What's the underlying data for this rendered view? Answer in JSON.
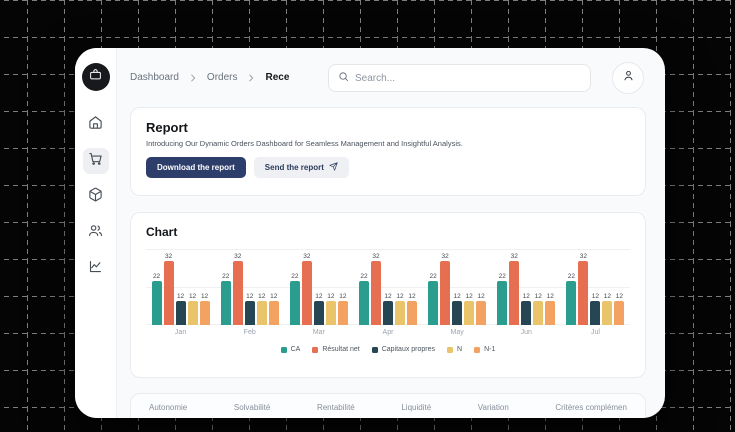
{
  "page": {
    "background": "#050505",
    "grid_line_color": "#7d7d7d"
  },
  "colors": {
    "primary_button_bg": "#2d3e6b",
    "primary_button_text": "#ffffff",
    "secondary_button_text": "#2c3a5c",
    "logo_bg": "#17191c"
  },
  "sidebar": {
    "logo_icon": "briefcase-icon",
    "items": [
      {
        "icon": "home-icon",
        "active": false
      },
      {
        "icon": "cart-icon",
        "active": true
      },
      {
        "icon": "package-icon",
        "active": false
      },
      {
        "icon": "users-icon",
        "active": false
      },
      {
        "icon": "chart-icon",
        "active": false
      }
    ]
  },
  "header": {
    "breadcrumb": [
      {
        "label": "Dashboard",
        "current": false
      },
      {
        "label": "Orders",
        "current": false
      },
      {
        "label": "Rece",
        "current": true
      }
    ],
    "separator_icon": "chevron-right-icon",
    "search_icon": "search-icon",
    "search_placeholder": "Search...",
    "avatar_icon": "user-icon"
  },
  "report": {
    "title": "Report",
    "description": "Introducing Our Dynamic Orders Dashboard for Seamless Management and Insightful Analysis.",
    "download_label": "Download the report",
    "send_label": "Send the report",
    "send_icon": "send-icon"
  },
  "chart_section": {
    "title": "Chart"
  },
  "chart_data": {
    "type": "bar",
    "title": "Chart",
    "categories": [
      "Jan",
      "Feb",
      "Mar",
      "Apr",
      "May",
      "Jun",
      "Jul"
    ],
    "series": [
      {
        "name": "CA",
        "color": "#2a9d8f",
        "values": [
          22,
          22,
          22,
          22,
          22,
          22,
          22
        ]
      },
      {
        "name": "Résultat net",
        "color": "#e76f51",
        "values": [
          32,
          32,
          32,
          32,
          32,
          32,
          32
        ]
      },
      {
        "name": "Capitaux propres",
        "color": "#264653",
        "values": [
          12,
          12,
          12,
          12,
          12,
          12,
          12
        ]
      },
      {
        "name": "N",
        "color": "#e9c46a",
        "values": [
          12,
          12,
          12,
          12,
          12,
          12,
          12
        ]
      },
      {
        "name": "N-1",
        "color": "#f4a261",
        "values": [
          12,
          12,
          12,
          12,
          12,
          12,
          12
        ]
      }
    ],
    "ylim": [
      0,
      37.5
    ],
    "grid": true,
    "bar_labels": true,
    "legend_position": "bottom"
  },
  "criteria_tabs": [
    {
      "label": "Autonomie"
    },
    {
      "label": "Solvabilité"
    },
    {
      "label": "Rentabilité"
    },
    {
      "label": "Liquidité"
    },
    {
      "label": "Variation"
    },
    {
      "label": "Critères complémen"
    }
  ]
}
